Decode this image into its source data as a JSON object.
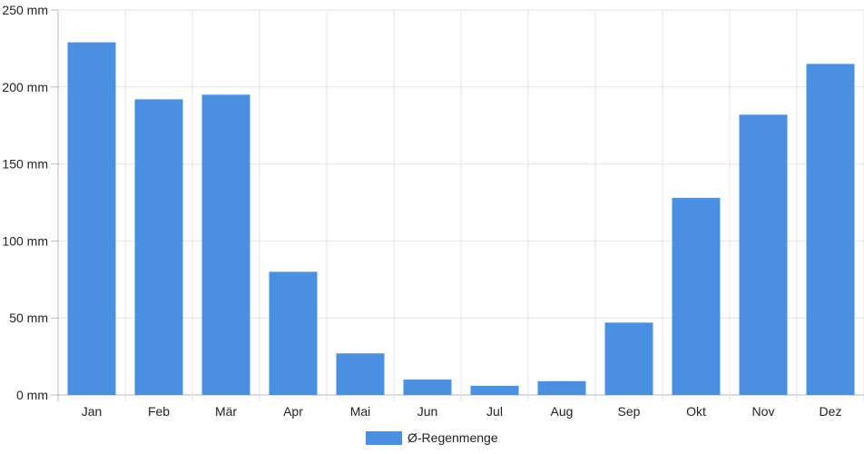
{
  "chart_data": {
    "type": "bar",
    "categories": [
      "Jan",
      "Feb",
      "Mär",
      "Apr",
      "Mai",
      "Jun",
      "Jul",
      "Aug",
      "Sep",
      "Okt",
      "Nov",
      "Dez"
    ],
    "series": [
      {
        "name": "Ø-Regenmenge",
        "values": [
          229,
          192,
          195,
          80,
          27,
          10,
          6,
          9,
          47,
          128,
          182,
          215
        ],
        "color": "#4a90e2"
      }
    ],
    "y_ticks": [
      "0 mm",
      "50 mm",
      "100 mm",
      "150 mm",
      "200 mm",
      "250 mm"
    ],
    "ylim": [
      0,
      250
    ],
    "grid": true,
    "legend_position": "bottom-center",
    "legend_label": "Ø-Regenmenge"
  }
}
